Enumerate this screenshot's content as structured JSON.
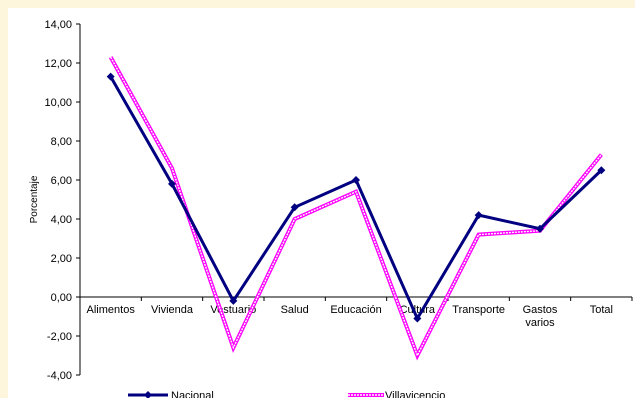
{
  "chart_data": {
    "type": "line",
    "title": "",
    "xlabel": "",
    "ylabel": "Porcentaje",
    "ylim": [
      -4,
      14
    ],
    "yticks": [
      "14,00",
      "12,00",
      "10,00",
      "8,00",
      "6,00",
      "4,00",
      "2,00",
      "0,00",
      "-2,00",
      "-4,00"
    ],
    "ytick_values": [
      14,
      12,
      10,
      8,
      6,
      4,
      2,
      0,
      -2,
      -4
    ],
    "categories": [
      "Alimentos",
      "Vivienda",
      "Vestuario",
      "Salud",
      "Educación",
      "Cultura",
      "Transporte",
      "Gastos varios",
      "Total"
    ],
    "category_lines": [
      [
        "Alimentos"
      ],
      [
        "Vivienda"
      ],
      [
        "Vestuario"
      ],
      [
        "Salud"
      ],
      [
        "Educación"
      ],
      [
        "Cultura"
      ],
      [
        "Transporte"
      ],
      [
        "Gastos",
        "varios"
      ],
      [
        "Total"
      ]
    ],
    "series": [
      {
        "name": "Nacional",
        "color": "#000080",
        "marker": "diamond",
        "values": [
          11.3,
          5.8,
          -0.2,
          4.6,
          6.0,
          -1.1,
          4.2,
          3.5,
          6.5
        ]
      },
      {
        "name": "Villavicencio",
        "color": "#ff00ff",
        "marker": "none",
        "style": "double",
        "values": [
          12.3,
          6.6,
          -2.6,
          4.0,
          5.4,
          -3.0,
          3.2,
          3.4,
          7.3
        ]
      }
    ],
    "grid": false,
    "legend_position": "bottom"
  }
}
